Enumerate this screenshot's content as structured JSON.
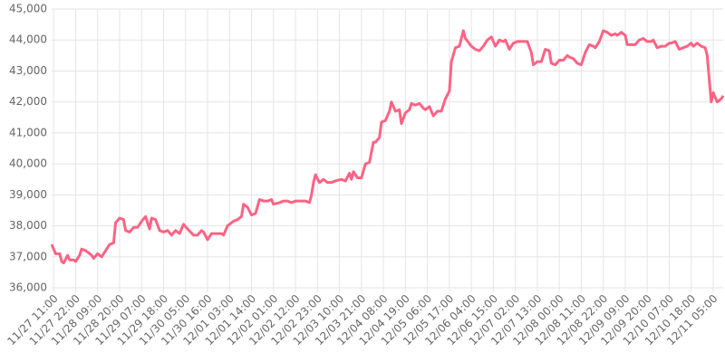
{
  "chart_data": {
    "type": "line",
    "x": [
      "11/27 10:00",
      "11/27 12:00",
      "11/27 14:00",
      "11/27 15:00",
      "11/27 16:00",
      "11/27 18:00",
      "11/27 19:00",
      "11/27 21:00",
      "11/27 22:00",
      "11/28 00:00",
      "11/28 01:00",
      "11/28 03:00",
      "11/28 06:00",
      "11/28 07:00",
      "11/28 09:00",
      "11/28 11:00",
      "11/28 13:00",
      "11/28 15:00",
      "11/28 17:00",
      "11/28 18:00",
      "11/28 20:00",
      "11/28 22:00",
      "11/28 23:00",
      "11/29 01:00",
      "11/29 03:00",
      "11/29 05:00",
      "11/29 07:00",
      "11/29 09:00",
      "11/29 11:00",
      "11/29 12:00",
      "11/29 14:00",
      "11/29 16:00",
      "11/29 18:00",
      "11/29 20:00",
      "11/29 22:00",
      "11/30 00:00",
      "11/30 02:00",
      "11/30 04:00",
      "11/30 06:00",
      "11/30 09:00",
      "11/30 11:00",
      "11/30 13:00",
      "11/30 14:00",
      "11/30 16:00",
      "11/30 18:00",
      "11/30 20:00",
      "11/30 23:00",
      "12/01 00:00",
      "12/01 02:00",
      "12/01 05:00",
      "12/01 07:00",
      "12/01 09:00",
      "12/01 10:00",
      "12/01 12:00",
      "12/01 14:00",
      "12/01 16:00",
      "12/01 18:00",
      "12/01 20:00",
      "12/01 22:00",
      "12/02 00:00",
      "12/02 01:00",
      "12/02 04:00",
      "12/02 06:00",
      "12/02 08:00",
      "12/02 10:00",
      "12/02 12:00",
      "12/02 15:00",
      "12/02 17:00",
      "12/02 19:00",
      "12/02 20:00",
      "12/02 21:00",
      "12/02 22:00",
      "12/03 00:00",
      "12/03 02:00",
      "12/03 04:00",
      "12/03 06:00",
      "12/03 08:00",
      "12/03 11:00",
      "12/03 13:00",
      "12/03 15:00",
      "12/03 16:00",
      "12/03 17:00",
      "12/03 19:00",
      "12/03 21:00",
      "12/03 23:00",
      "12/04 01:00",
      "12/04 03:00",
      "12/04 04:00",
      "12/04 06:00",
      "12/04 07:00",
      "12/04 09:00",
      "12/04 11:00",
      "12/04 12:00",
      "12/04 14:00",
      "12/04 16:00",
      "12/04 17:00",
      "12/04 19:00",
      "12/04 21:00",
      "12/04 22:00",
      "12/05 00:00",
      "12/05 02:00",
      "12/05 04:00",
      "12/05 05:00",
      "12/05 07:00",
      "12/05 09:00",
      "12/05 11:00",
      "12/05 13:00",
      "12/05 14:00",
      "12/05 15:00",
      "12/05 17:00",
      "12/05 18:00",
      "12/05 20:00",
      "12/05 22:00",
      "12/06 00:00",
      "12/06 01:00",
      "12/06 04:00",
      "12/06 06:00",
      "12/06 08:00",
      "12/06 10:00",
      "12/06 12:00",
      "12/06 14:00",
      "12/06 16:00",
      "12/06 18:00",
      "12/06 20:00",
      "12/06 21:00",
      "12/06 23:00",
      "12/07 01:00",
      "12/07 03:00",
      "12/07 06:00",
      "12/07 08:00",
      "12/07 10:00",
      "12/07 11:00",
      "12/07 13:00",
      "12/07 15:00",
      "12/07 17:00",
      "12/07 19:00",
      "12/07 20:00",
      "12/07 22:00",
      "12/08 00:00",
      "12/08 02:00",
      "12/08 04:00",
      "12/08 05:00",
      "12/08 07:00",
      "12/08 09:00",
      "12/08 11:00",
      "12/08 13:00",
      "12/08 15:00",
      "12/08 17:00",
      "12/08 18:00",
      "12/08 20:00",
      "12/08 22:00",
      "12/09 00:00",
      "12/09 02:00",
      "12/09 04:00",
      "12/09 05:00",
      "12/09 07:00",
      "12/09 09:00",
      "12/09 10:00",
      "12/09 13:00",
      "12/09 14:00",
      "12/09 16:00",
      "12/09 18:00",
      "12/09 20:00",
      "12/09 22:00",
      "12/09 23:00",
      "12/10 01:00",
      "12/10 03:00",
      "12/10 05:00",
      "12/10 07:00",
      "12/10 08:00",
      "12/10 10:00",
      "12/10 12:00",
      "12/10 14:00",
      "12/10 16:00",
      "12/10 18:00",
      "12/10 19:00",
      "12/10 21:00",
      "12/10 23:00",
      "12/11 01:00",
      "12/11 02:00",
      "12/11 04:00",
      "12/11 05:00",
      "12/11 07:00",
      "12/11 09:00",
      "12/11 10:00"
    ],
    "series": [
      {
        "color": "#ff6384",
        "values": [
          37400,
          37100,
          37100,
          36850,
          36800,
          37050,
          36900,
          36900,
          36850,
          37050,
          37250,
          37200,
          37050,
          36950,
          37100,
          37000,
          37200,
          37400,
          37450,
          38100,
          38250,
          38200,
          37850,
          37800,
          37950,
          37950,
          38150,
          38300,
          37900,
          38250,
          38200,
          37850,
          37800,
          37850,
          37700,
          37850,
          37750,
          38050,
          37900,
          37700,
          37700,
          37850,
          37800,
          37550,
          37750,
          37750,
          37750,
          37700,
          38000,
          38150,
          38200,
          38300,
          38700,
          38600,
          38350,
          38400,
          38850,
          38800,
          38800,
          38850,
          38700,
          38750,
          38800,
          38800,
          38750,
          38800,
          38800,
          38800,
          38750,
          39000,
          39400,
          39650,
          39400,
          39500,
          39400,
          39400,
          39450,
          39500,
          39450,
          39700,
          39500,
          39750,
          39550,
          39550,
          40000,
          40050,
          40700,
          40700,
          40850,
          41350,
          41400,
          41700,
          42000,
          41700,
          41750,
          41300,
          41650,
          41750,
          41950,
          41900,
          41950,
          41800,
          41750,
          41850,
          41550,
          41700,
          41700,
          41900,
          42100,
          42350,
          43300,
          43750,
          43800,
          44300,
          44050,
          43800,
          43700,
          43650,
          43800,
          44000,
          44100,
          43800,
          44000,
          43950,
          44000,
          43700,
          43900,
          43950,
          43950,
          43950,
          43600,
          43200,
          43300,
          43300,
          43700,
          43650,
          43250,
          43200,
          43350,
          43350,
          43500,
          43450,
          43400,
          43250,
          43200,
          43600,
          43850,
          43800,
          43750,
          43950,
          44300,
          44250,
          44150,
          44200,
          44150,
          44250,
          44150,
          43850,
          43850,
          43850,
          44000,
          44050,
          43950,
          43950,
          44000,
          43750,
          43800,
          43800,
          43900,
          43900,
          43950,
          43700,
          43750,
          43800,
          43900,
          43800,
          43900,
          43800,
          43750,
          43500,
          42000,
          42300,
          42000,
          42100,
          42200
        ]
      }
    ],
    "xlim": [
      "11/27 10:00",
      "12/11 10:00"
    ],
    "xticks": [
      "11/27 11:00",
      "11/27 22:00",
      "11/28 09:00",
      "11/28 20:00",
      "11/29 07:00",
      "11/29 18:00",
      "11/30 05:00",
      "11/30 16:00",
      "12/01 03:00",
      "12/01 14:00",
      "12/02 01:00",
      "12/02 12:00",
      "12/02 23:00",
      "12/03 10:00",
      "12/03 21:00",
      "12/04 08:00",
      "12/04 19:00",
      "12/05 06:00",
      "12/05 17:00",
      "12/06 04:00",
      "12/06 15:00",
      "12/07 02:00",
      "12/07 13:00",
      "12/08 00:00",
      "12/08 11:00",
      "12/08 22:00",
      "12/09 09:00",
      "12/09 20:00",
      "12/10 07:00",
      "12/10 18:00",
      "12/11 05:00"
    ],
    "ylim": [
      36000,
      45000
    ],
    "yticks": [
      {
        "value": 36000,
        "label": "36,000"
      },
      {
        "value": 37000,
        "label": "37,000"
      },
      {
        "value": 38000,
        "label": "38,000"
      },
      {
        "value": 39000,
        "label": "39,000"
      },
      {
        "value": 40000,
        "label": "40,000"
      },
      {
        "value": 41000,
        "label": "41,000"
      },
      {
        "value": 42000,
        "label": "42,000"
      },
      {
        "value": 43000,
        "label": "43,000"
      },
      {
        "value": 44000,
        "label": "44,000"
      },
      {
        "value": 45000,
        "label": "45,000"
      }
    ],
    "grid": true
  }
}
